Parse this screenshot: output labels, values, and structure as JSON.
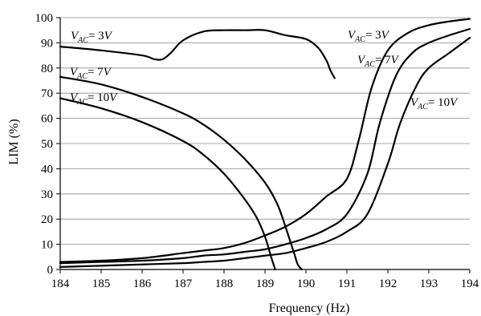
{
  "chart_data": {
    "type": "line",
    "xlabel": "Frequency (Hz)",
    "ylabel": "LIM (%)",
    "xlim": [
      184,
      194
    ],
    "ylim": [
      0,
      100
    ],
    "xticks": [
      184,
      185,
      186,
      187,
      188,
      189,
      190,
      191,
      192,
      193,
      194
    ],
    "yticks": [
      0,
      10,
      20,
      30,
      40,
      50,
      60,
      70,
      80,
      90,
      100
    ],
    "grid": "horizontal",
    "series": [
      {
        "name": "VAC= 3V",
        "group": "decreasing",
        "label_parts": [
          "V",
          "AC",
          "= 3",
          "V"
        ],
        "x": [
          184,
          185,
          186,
          186.3,
          186.5,
          186.7,
          187,
          187.5,
          188,
          188.5,
          189,
          189.5,
          190,
          190.3,
          190.5,
          190.6,
          190.7
        ],
        "y": [
          88.5,
          87,
          85,
          83.5,
          83.5,
          86,
          91,
          94.5,
          95,
          95,
          95,
          93,
          91.5,
          88,
          83,
          79,
          76
        ]
      },
      {
        "name": "VAC= 7V",
        "group": "decreasing",
        "label_parts": [
          "V",
          "AC",
          "= 7",
          "V"
        ],
        "x": [
          184,
          185,
          186,
          187,
          187.5,
          188,
          188.5,
          189,
          189.3,
          189.5,
          189.7,
          189.8,
          189.9
        ],
        "y": [
          76.5,
          73.5,
          68.5,
          62,
          57.5,
          51.5,
          44,
          34.5,
          26,
          17,
          7,
          2,
          0
        ]
      },
      {
        "name": "VAC= 10V",
        "group": "decreasing",
        "label_parts": [
          "V",
          "AC",
          "= 10",
          "V"
        ],
        "x": [
          184,
          185,
          186,
          187,
          187.5,
          188,
          188.5,
          188.8,
          189,
          189.15,
          189.25
        ],
        "y": [
          68,
          64,
          58.5,
          51,
          45.5,
          38,
          28,
          20.5,
          13,
          5,
          0
        ]
      },
      {
        "name": "VAC= 3V",
        "group": "increasing",
        "label_parts": [
          "V",
          "AC",
          "= 3",
          "V"
        ],
        "x": [
          184,
          185,
          186,
          187,
          187.5,
          188,
          188.5,
          189,
          189.5,
          190,
          190.5,
          191,
          191.3,
          191.6,
          192,
          192.5,
          193,
          193.5,
          194
        ],
        "y": [
          3,
          3.5,
          4.5,
          6.5,
          7.5,
          8.5,
          10.5,
          13.5,
          17,
          22,
          29,
          36,
          52,
          72,
          87,
          94,
          97,
          98.5,
          99.5
        ]
      },
      {
        "name": "VAC= 7V",
        "group": "increasing",
        "label_parts": [
          "V",
          "AC",
          "= 7",
          "V"
        ],
        "x": [
          184,
          185,
          186,
          187,
          187.5,
          188,
          188.5,
          189,
          189.5,
          190,
          190.5,
          191,
          191.5,
          191.8,
          192.2,
          192.6,
          193,
          193.5,
          194
        ],
        "y": [
          2.5,
          3,
          3.5,
          4.5,
          5.5,
          6,
          7,
          8,
          10,
          12.5,
          16,
          22,
          38,
          58,
          77,
          86,
          90,
          93,
          95.5
        ]
      },
      {
        "name": "VAC= 10V",
        "group": "increasing",
        "label_parts": [
          "V",
          "AC",
          "= 10",
          "V"
        ],
        "x": [
          184,
          185,
          186,
          187,
          187.5,
          188,
          188.5,
          189,
          189.5,
          190,
          190.5,
          191,
          191.5,
          192,
          192.3,
          192.7,
          193,
          193.5,
          194
        ],
        "y": [
          1,
          1.5,
          2,
          2.5,
          3,
          3.5,
          4.5,
          5.5,
          6.5,
          8.5,
          11,
          15,
          22,
          42,
          58,
          73,
          80,
          86,
          92
        ]
      }
    ]
  }
}
